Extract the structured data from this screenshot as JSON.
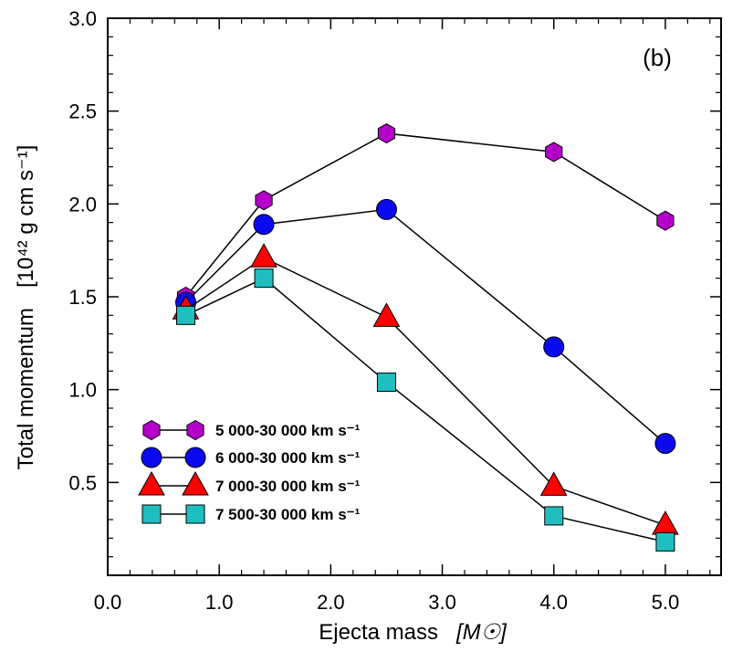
{
  "chart_data": {
    "type": "line",
    "panel_label": "(b)",
    "xlabel": "Ejecta mass",
    "xlabel_unit": "[M☉]",
    "ylabel": "Total momentum",
    "ylabel_unit": "[10⁴² g cm s⁻¹]",
    "xlim": [
      0.0,
      5.5
    ],
    "ylim": [
      0.0,
      3.0
    ],
    "x_ticks": [
      0.0,
      1.0,
      2.0,
      3.0,
      4.0,
      5.0
    ],
    "x_tick_labels": [
      "0.0",
      "1.0",
      "2.0",
      "3.0",
      "4.0",
      "5.0"
    ],
    "y_ticks": [
      0.5,
      1.0,
      1.5,
      2.0,
      2.5,
      3.0
    ],
    "y_tick_labels": [
      "0.5",
      "1.0",
      "1.5",
      "2.0",
      "2.5",
      "3.0"
    ],
    "grid": false,
    "legend_position": "bottom-left",
    "x": [
      0.7,
      1.4,
      2.5,
      4.0,
      5.0
    ],
    "series": [
      {
        "name": "5 000-30 000 km s⁻¹",
        "marker": "hexagon",
        "color": "#b400c8",
        "values": [
          1.5,
          2.02,
          2.38,
          2.28,
          1.91
        ]
      },
      {
        "name": "6 000-30 000 km s⁻¹",
        "marker": "circle",
        "color": "#0a0af0",
        "values": [
          1.47,
          1.89,
          1.97,
          1.23,
          0.71
        ]
      },
      {
        "name": "7 000-30 000 km s⁻¹",
        "marker": "triangle",
        "color": "#ff0000",
        "values": [
          1.43,
          1.71,
          1.39,
          0.48,
          0.27
        ]
      },
      {
        "name": "7 500-30 000 km s⁻¹",
        "marker": "square",
        "color": "#1fbfbf",
        "values": [
          1.4,
          1.6,
          1.04,
          0.32,
          0.18
        ]
      }
    ]
  }
}
